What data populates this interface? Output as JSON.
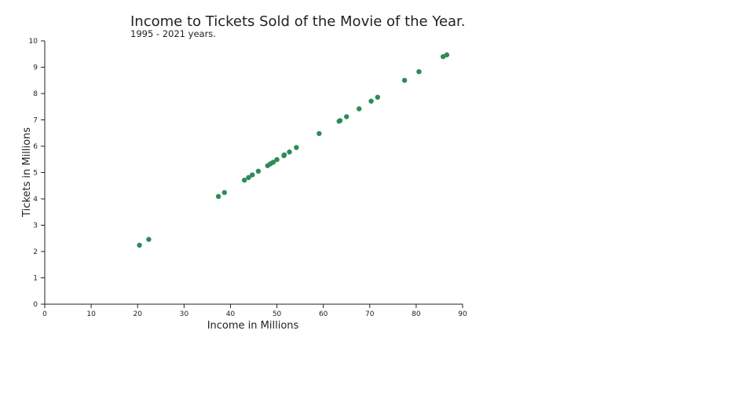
{
  "chart_data": {
    "type": "scatter",
    "title": "Income to Tickets Sold of the Movie of the Year.",
    "subtitle": "1995 - 2021 years.",
    "xlabel": "Income in Millions",
    "ylabel": "Tickets in Millions",
    "xlim": [
      0,
      90
    ],
    "ylim": [
      0,
      10
    ],
    "xticks": [
      "0",
      "10",
      "20",
      "30",
      "40",
      "50",
      "60",
      "70",
      "80",
      "90"
    ],
    "yticks": [
      "0",
      "1",
      "2",
      "3",
      "4",
      "5",
      "6",
      "7",
      "8",
      "9",
      "10"
    ],
    "grid": false,
    "color": "#2e8b57",
    "points": [
      {
        "x": 20.4,
        "y": 2.24
      },
      {
        "x": 22.4,
        "y": 2.46
      },
      {
        "x": 37.4,
        "y": 4.09
      },
      {
        "x": 38.7,
        "y": 4.24
      },
      {
        "x": 43.0,
        "y": 4.71
      },
      {
        "x": 43.9,
        "y": 4.81
      },
      {
        "x": 44.7,
        "y": 4.91
      },
      {
        "x": 46.0,
        "y": 5.05
      },
      {
        "x": 48.0,
        "y": 5.26
      },
      {
        "x": 48.6,
        "y": 5.33
      },
      {
        "x": 49.2,
        "y": 5.39
      },
      {
        "x": 50.0,
        "y": 5.49
      },
      {
        "x": 51.5,
        "y": 5.64
      },
      {
        "x": 51.6,
        "y": 5.67
      },
      {
        "x": 52.7,
        "y": 5.78
      },
      {
        "x": 54.2,
        "y": 5.95
      },
      {
        "x": 59.1,
        "y": 6.48
      },
      {
        "x": 63.4,
        "y": 6.95
      },
      {
        "x": 63.6,
        "y": 6.97
      },
      {
        "x": 65.0,
        "y": 7.12
      },
      {
        "x": 67.7,
        "y": 7.42
      },
      {
        "x": 70.3,
        "y": 7.71
      },
      {
        "x": 71.7,
        "y": 7.86
      },
      {
        "x": 77.5,
        "y": 8.5
      },
      {
        "x": 80.6,
        "y": 8.83
      },
      {
        "x": 85.8,
        "y": 9.4
      },
      {
        "x": 86.6,
        "y": 9.47
      }
    ]
  }
}
